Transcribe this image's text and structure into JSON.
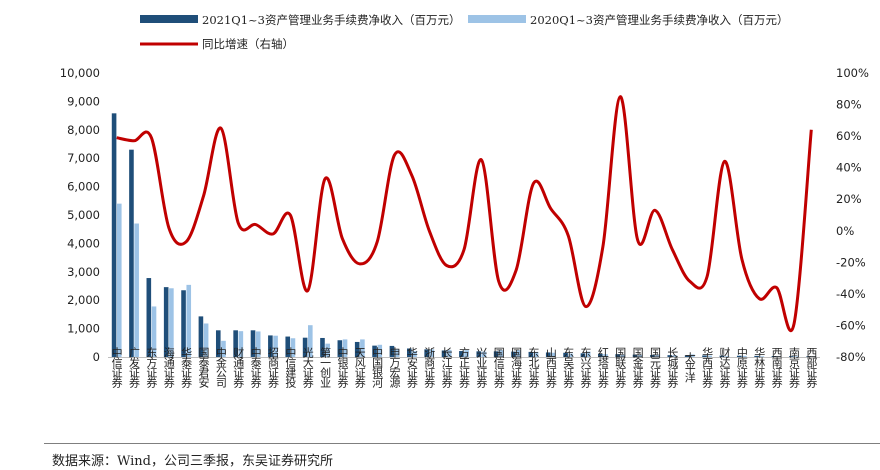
{
  "chart_data": {
    "type": "bar",
    "categories": [
      "中信证券",
      "广发证券",
      "东方证券",
      "海通证券",
      "华泰证券",
      "国泰君安",
      "中金公司",
      "财通证券",
      "中泰证券",
      "招商证券",
      "中信建投",
      "光大证券",
      "第一创业",
      "中银证券",
      "天风证券",
      "中国银河",
      "申万宏源",
      "华安证券",
      "浙商证券",
      "长江证券",
      "方正证券",
      "兴业证券",
      "国信证券",
      "国海证券",
      "东北证券",
      "山西证券",
      "东吴证券",
      "东兴证券",
      "红塔证券",
      "国联证券",
      "国金证券",
      "国元证券",
      "长城证券",
      "太平洋",
      "华西证券",
      "财达证券",
      "中原证券",
      "华林证券",
      "西南证券",
      "南京证券",
      "西部证券"
    ],
    "series": [
      {
        "name": "2021Q1~3资产管理业务手续费净收入（百万元）",
        "axis": "left",
        "color": "#1f4e79",
        "values": [
          8580,
          7300,
          2780,
          2460,
          2350,
          1430,
          940,
          940,
          940,
          760,
          720,
          680,
          670,
          590,
          530,
          400,
          390,
          300,
          270,
          230,
          210,
          200,
          200,
          190,
          180,
          160,
          150,
          130,
          110,
          100,
          85,
          70,
          65,
          60,
          55,
          50,
          45,
          40,
          35,
          30,
          28
        ]
      },
      {
        "name": "2020Q1~3资产管理业务手续费净收入（百万元）",
        "axis": "left",
        "color": "#9dc3e6",
        "values": [
          5400,
          4700,
          1780,
          2420,
          2540,
          1180,
          570,
          910,
          900,
          750,
          660,
          1120,
          470,
          620,
          620,
          430,
          270,
          210,
          270,
          250,
          240,
          190,
          240,
          240,
          180,
          150,
          120,
          190,
          100,
          90,
          80,
          80,
          60,
          90,
          50,
          30,
          40,
          25,
          30,
          26,
          22
        ]
      },
      {
        "name": "同比增速（右轴）",
        "axis": "right",
        "color": "#c00000",
        "type": "line",
        "values": [
          59,
          57,
          59,
          2,
          -7,
          22,
          65,
          5,
          4,
          -2,
          10,
          -38,
          33,
          -5,
          -21,
          -7,
          48,
          35,
          0,
          -22,
          -12,
          45,
          -32,
          -25,
          30,
          14,
          -3,
          -48,
          -10,
          85,
          -6,
          13,
          -12,
          -32,
          -29,
          44,
          -18,
          -43,
          -36,
          -59,
          64
        ]
      }
    ],
    "y_left": {
      "min": 0,
      "max": 10000,
      "ticks": [
        "0",
        "1,000",
        "2,000",
        "3,000",
        "4,000",
        "5,000",
        "6,000",
        "7,000",
        "8,000",
        "9,000",
        "10,000"
      ]
    },
    "y_right": {
      "min": -80,
      "max": 100,
      "ticks": [
        "-80%",
        "-60%",
        "-40%",
        "-20%",
        "0%",
        "20%",
        "40%",
        "60%",
        "80%",
        "100%"
      ]
    },
    "grid": false,
    "legend_position": "top"
  },
  "footer": {
    "source": "数据来源：Wind，公司三季报，东吴证券研究所"
  }
}
